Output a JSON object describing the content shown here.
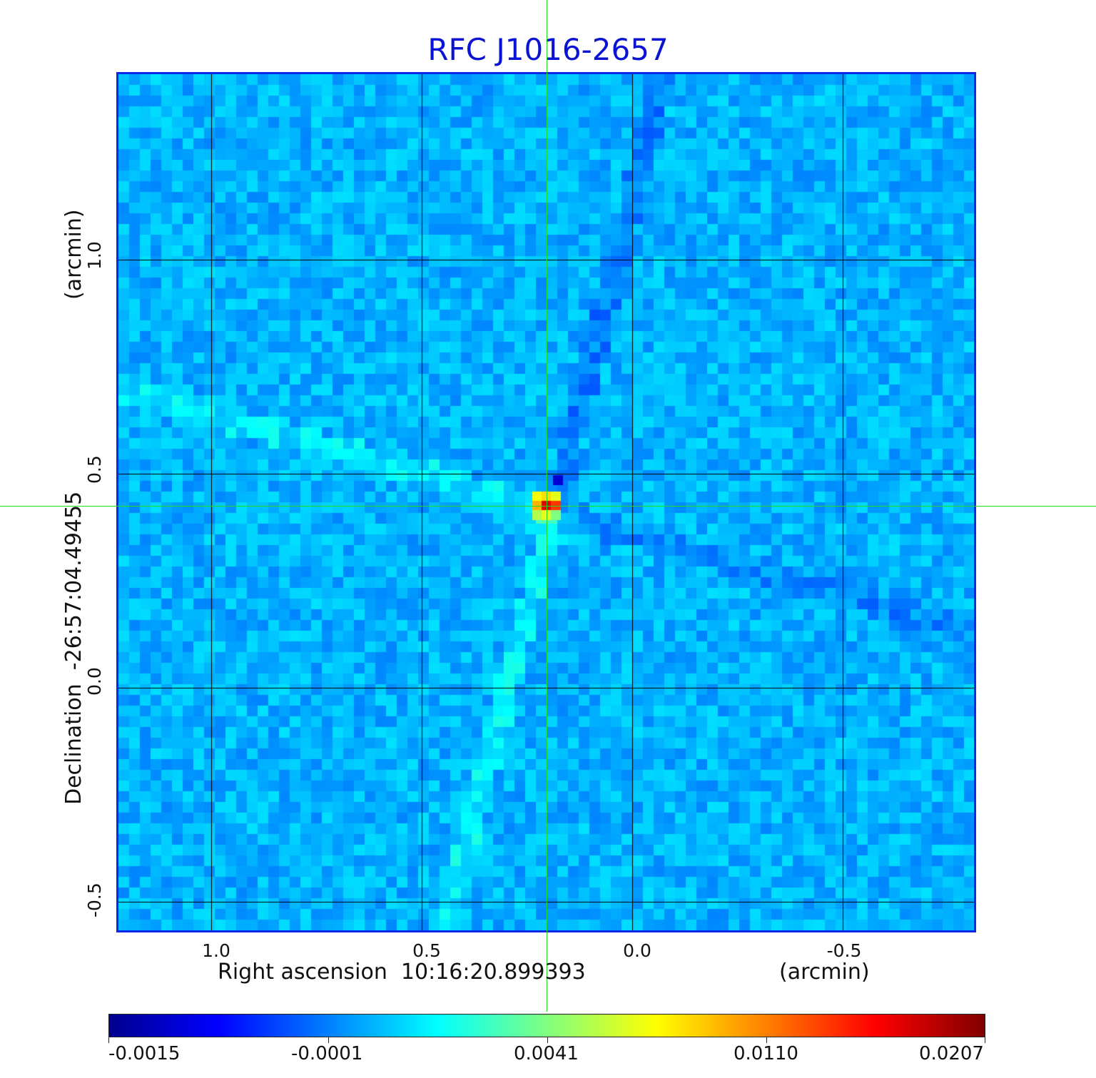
{
  "title": "RFC J1016-2657",
  "x_axis": {
    "label": "Right ascension  10:16:20.899393",
    "unit": "(arcmin)",
    "ticks": [
      "1.0",
      "0.5",
      "0.0",
      "-0.5"
    ]
  },
  "y_axis": {
    "label": "Declination  -26:57:04.49455",
    "unit": "(arcmin)",
    "ticks": [
      "1.0",
      "0.5",
      "0.0",
      "-0.5"
    ]
  },
  "colorbar": {
    "ticks": [
      "-0.0015",
      "-0.0001",
      "0.0041",
      "0.0110",
      "0.0207"
    ],
    "colormap": "jet"
  },
  "colors": {
    "title": "#0a14d2",
    "frame": "#0a28e6",
    "crosshair": "#22dd22",
    "grid": "#000000"
  }
}
